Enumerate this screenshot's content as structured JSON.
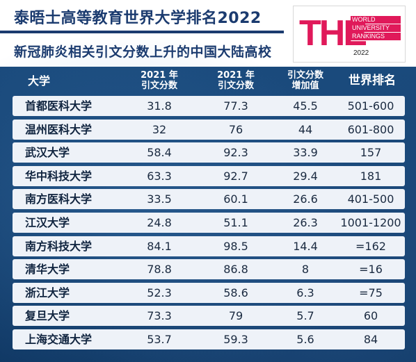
{
  "header": {
    "title": "泰晤士高等教育世界大学排名2022",
    "subtitle": "新冠肺炎相关引文分数上升的中国大陆高校"
  },
  "logo": {
    "letters": "THE",
    "lines": [
      "WORLD",
      "UNIVERSITY",
      "RANKINGS"
    ],
    "year": "2022",
    "accent": "#e0195a"
  },
  "table": {
    "headers": {
      "university": "大学",
      "score2021": [
        "2021 年",
        "引文分数"
      ],
      "score2021b": [
        "2021 年",
        "引文分数"
      ],
      "increase": [
        "引文分数",
        "增加值"
      ],
      "rank": "世界排名"
    },
    "rows": [
      {
        "name": "首都医科大学",
        "a": "31.8",
        "b": "77.3",
        "inc": "45.5",
        "rank": "501-600"
      },
      {
        "name": "温州医科大学",
        "a": "32",
        "b": "76",
        "inc": "44",
        "rank": "601-800"
      },
      {
        "name": "武汉大学",
        "a": "58.4",
        "b": "92.3",
        "inc": "33.9",
        "rank": "157"
      },
      {
        "name": "华中科技大学",
        "a": "63.3",
        "b": "92.7",
        "inc": "29.4",
        "rank": "181"
      },
      {
        "name": "南方医科大学",
        "a": "33.5",
        "b": "60.1",
        "inc": "26.6",
        "rank": "401-500"
      },
      {
        "name": "江汉大学",
        "a": "24.8",
        "b": "51.1",
        "inc": "26.3",
        "rank": "1001-1200"
      },
      {
        "name": "南方科技大学",
        "a": "84.1",
        "b": "98.5",
        "inc": "14.4",
        "rank": "=162"
      },
      {
        "name": "清华大学",
        "a": "78.8",
        "b": "86.8",
        "inc": "8",
        "rank": "=16"
      },
      {
        "name": "浙江大学",
        "a": "52.3",
        "b": "58.6",
        "inc": "6.3",
        "rank": "=75"
      },
      {
        "name": "复旦大学",
        "a": "73.3",
        "b": "79",
        "inc": "5.7",
        "rank": "60"
      },
      {
        "name": "上海交通大学",
        "a": "53.7",
        "b": "59.3",
        "inc": "5.6",
        "rank": "84"
      }
    ]
  }
}
